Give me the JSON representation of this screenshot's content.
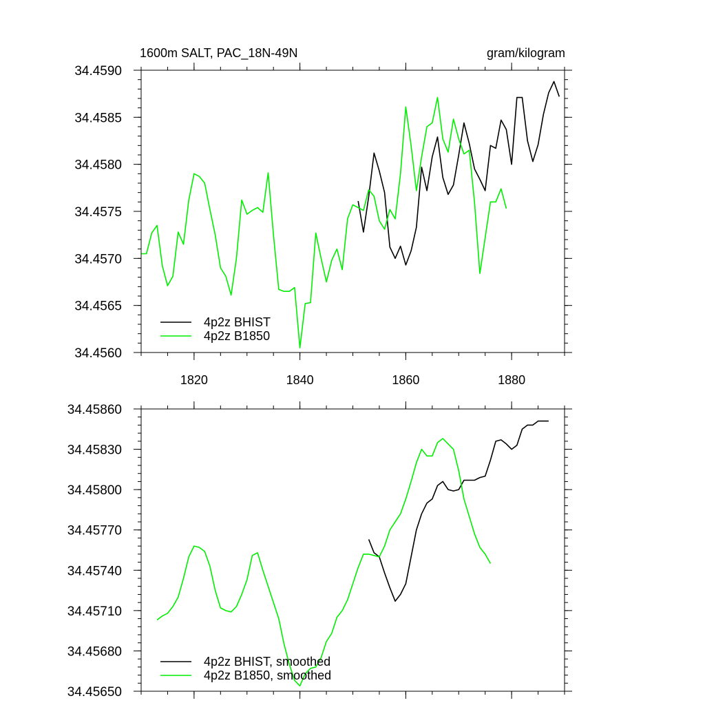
{
  "chart_data": [
    {
      "type": "line",
      "title": "1600m SALT, PAC_18N-49N",
      "units": "gram/kilogram",
      "xlabel": "",
      "ylabel": "",
      "xlim": [
        1810,
        1890
      ],
      "ylim": [
        34.456,
        34.459
      ],
      "x_ticks": [
        1820,
        1840,
        1860,
        1880
      ],
      "x_tick_labels": [
        "1820",
        "1840",
        "1860",
        "1880"
      ],
      "y_ticks": [
        34.456,
        34.4565,
        34.457,
        34.4575,
        34.458,
        34.4585,
        34.459
      ],
      "y_tick_labels": [
        "34.4560",
        "34.4565",
        "34.4570",
        "34.4575",
        "34.4580",
        "34.4585",
        "34.4590"
      ],
      "legend_position": "bottom-left",
      "series": [
        {
          "name": "4p2z BHIST",
          "color": "#000000",
          "x": [
            1851,
            1852,
            1853,
            1854,
            1855,
            1856,
            1857,
            1858,
            1859,
            1860,
            1861,
            1862,
            1863,
            1864,
            1865,
            1866,
            1867,
            1868,
            1869,
            1870,
            1871,
            1872,
            1873,
            1874,
            1875,
            1876,
            1877,
            1878,
            1879,
            1880,
            1881,
            1882,
            1883,
            1884,
            1885,
            1886,
            1887,
            1888,
            1889
          ],
          "values": [
            34.45761,
            34.45728,
            34.45766,
            34.45812,
            34.45793,
            34.4577,
            34.45712,
            34.457,
            34.45713,
            34.45693,
            34.45708,
            34.45733,
            34.45797,
            34.45772,
            34.45808,
            34.45829,
            34.45786,
            34.45768,
            34.45778,
            34.4581,
            34.45844,
            34.45822,
            34.45795,
            34.45784,
            34.45772,
            34.4582,
            34.45817,
            34.45847,
            34.45837,
            34.458,
            34.45871,
            34.45871,
            34.45825,
            34.45803,
            34.45821,
            34.45853,
            34.45876,
            34.45888,
            34.45872
          ]
        },
        {
          "name": "4p2z B1850",
          "color": "#00ee00",
          "x": [
            1810,
            1811,
            1812,
            1813,
            1814,
            1815,
            1816,
            1817,
            1818,
            1819,
            1820,
            1821,
            1822,
            1823,
            1824,
            1825,
            1826,
            1827,
            1828,
            1829,
            1830,
            1831,
            1832,
            1833,
            1834,
            1835,
            1836,
            1837,
            1838,
            1839,
            1840,
            1841,
            1842,
            1843,
            1844,
            1845,
            1846,
            1847,
            1848,
            1849,
            1850,
            1851,
            1852,
            1853,
            1854,
            1855,
            1856,
            1857,
            1858,
            1859,
            1860,
            1861,
            1862,
            1863,
            1864,
            1865,
            1866,
            1867,
            1868,
            1869,
            1870,
            1871,
            1872,
            1873,
            1874,
            1875,
            1876,
            1877,
            1878,
            1879
          ],
          "values": [
            34.45705,
            34.45705,
            34.45727,
            34.45735,
            34.45692,
            34.45671,
            34.45681,
            34.45728,
            34.45715,
            34.45762,
            34.4579,
            34.45787,
            34.4578,
            34.45752,
            34.45725,
            34.4569,
            34.45681,
            34.45661,
            34.457,
            34.45762,
            34.45747,
            34.45751,
            34.45754,
            34.45749,
            34.45791,
            34.45725,
            34.45667,
            34.45665,
            34.45665,
            34.45669,
            34.45605,
            34.45652,
            34.45653,
            34.45727,
            34.457,
            34.45675,
            34.45698,
            34.4571,
            34.45688,
            34.45742,
            34.45757,
            34.45754,
            34.45751,
            34.45773,
            34.45766,
            34.4574,
            34.45731,
            34.45752,
            34.45742,
            34.4579,
            34.45861,
            34.4582,
            34.45772,
            34.45808,
            34.4584,
            34.45844,
            34.45871,
            34.45827,
            34.45813,
            34.45848,
            34.45827,
            34.45811,
            34.45815,
            34.45759,
            34.45684,
            34.45722,
            34.4576,
            34.4576,
            34.45774,
            34.45753
          ]
        }
      ]
    },
    {
      "type": "line",
      "title": "",
      "xlabel": "",
      "ylabel": "",
      "xlim": [
        1810,
        1890
      ],
      "ylim": [
        34.4565,
        34.4586
      ],
      "x_ticks": [
        1820,
        1840,
        1860,
        1880
      ],
      "y_ticks": [
        34.4565,
        34.4568,
        34.4571,
        34.4574,
        34.4577,
        34.458,
        34.4583,
        34.4586
      ],
      "y_tick_labels": [
        "34.45650",
        "34.45680",
        "34.45710",
        "34.45740",
        "34.45770",
        "34.45800",
        "34.45830",
        "34.45860"
      ],
      "legend_position": "bottom-left",
      "series": [
        {
          "name": "4p2z BHIST, smoothed",
          "color": "#000000",
          "x": [
            1853,
            1854,
            1855,
            1856,
            1857,
            1858,
            1859,
            1860,
            1861,
            1862,
            1863,
            1864,
            1865,
            1866,
            1867,
            1868,
            1869,
            1870,
            1871,
            1872,
            1873,
            1874,
            1875,
            1876,
            1877,
            1878,
            1879,
            1880,
            1881,
            1882,
            1883,
            1884,
            1885,
            1886,
            1887
          ],
          "values": [
            34.45763,
            34.45753,
            34.4575,
            34.45738,
            34.45727,
            34.45717,
            34.45722,
            34.4573,
            34.4575,
            34.4577,
            34.45782,
            34.4579,
            34.45793,
            34.45803,
            34.45806,
            34.458,
            34.45799,
            34.458,
            34.45807,
            34.45807,
            34.45807,
            34.45809,
            34.4581,
            34.45822,
            34.45836,
            34.45837,
            34.45834,
            34.4583,
            34.45833,
            34.45845,
            34.45848,
            34.45848,
            34.45851,
            34.45851,
            34.45851
          ]
        },
        {
          "name": "4p2z B1850, smoothed",
          "color": "#00ee00",
          "x": [
            1813,
            1814,
            1815,
            1816,
            1817,
            1818,
            1819,
            1820,
            1821,
            1822,
            1823,
            1824,
            1825,
            1826,
            1827,
            1828,
            1829,
            1830,
            1831,
            1832,
            1833,
            1834,
            1835,
            1836,
            1837,
            1838,
            1839,
            1840,
            1841,
            1842,
            1843,
            1844,
            1845,
            1846,
            1847,
            1848,
            1849,
            1850,
            1851,
            1852,
            1853,
            1854,
            1855,
            1856,
            1857,
            1858,
            1859,
            1860,
            1861,
            1862,
            1863,
            1864,
            1865,
            1866,
            1867,
            1868,
            1869,
            1870,
            1871,
            1872,
            1873,
            1874,
            1875,
            1876
          ],
          "values": [
            34.45703,
            34.45706,
            34.45708,
            34.45713,
            34.4572,
            34.45734,
            34.4575,
            34.45758,
            34.45757,
            34.45754,
            34.45743,
            34.45725,
            34.45712,
            34.4571,
            34.45709,
            34.45713,
            34.45722,
            34.45733,
            34.45751,
            34.45753,
            34.4574,
            34.45728,
            34.45716,
            34.45704,
            34.45685,
            34.4567,
            34.45658,
            34.45654,
            34.45663,
            34.45667,
            34.45668,
            34.45675,
            34.45687,
            34.45693,
            34.45705,
            34.4571,
            34.45718,
            34.4573,
            34.45742,
            34.45752,
            34.45752,
            34.45751,
            34.4575,
            34.45758,
            34.4577,
            34.45776,
            34.45782,
            34.45793,
            34.45806,
            34.4582,
            34.4583,
            34.45825,
            34.45825,
            34.45835,
            34.45838,
            34.45834,
            34.4583,
            34.45814,
            34.45793,
            34.4578,
            34.45767,
            34.45757,
            34.45752,
            34.45745
          ]
        }
      ]
    }
  ]
}
